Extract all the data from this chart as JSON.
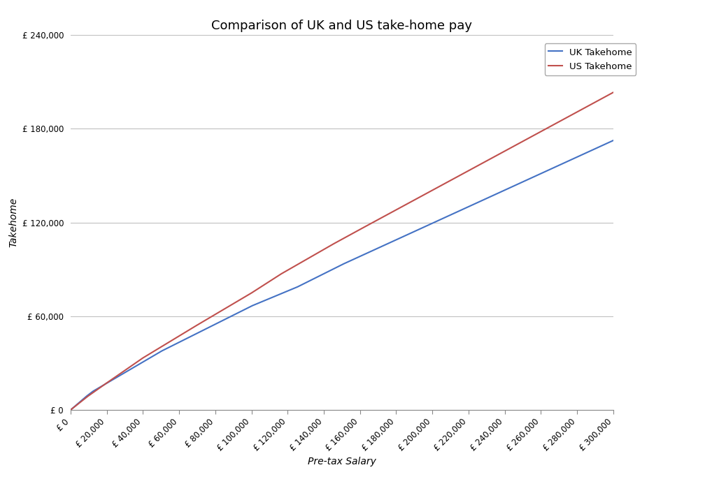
{
  "title": "Comparison of UK and US take-home pay",
  "xlabel": "Pre-tax Salary",
  "ylabel": "Takehome",
  "uk_color": "#4472C4",
  "us_color": "#C0504D",
  "legend_uk": "UK Takehome",
  "legend_us": "US Takehome",
  "x_max": 300000,
  "x_step": 20000,
  "y_max": 240000,
  "y_step": 60000,
  "background_color": "#ffffff",
  "grid_color": "#c0c0c0",
  "title_fontsize": 13,
  "axis_label_fontsize": 10,
  "tick_fontsize": 8.5
}
